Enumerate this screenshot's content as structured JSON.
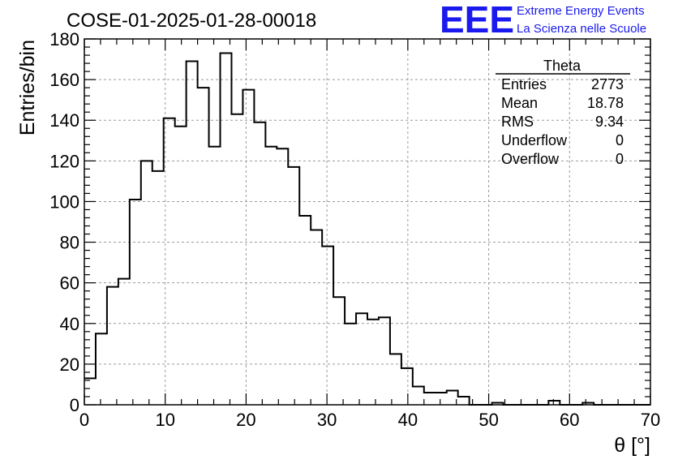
{
  "chart_data": {
    "type": "histogram",
    "title": "COSE-01-2025-01-28-00018",
    "xlabel": "θ [°]",
    "ylabel": "Entries/bin",
    "xlim": [
      0,
      70
    ],
    "ylim": [
      0,
      180
    ],
    "xticks": [
      0,
      10,
      20,
      30,
      40,
      50,
      60,
      70
    ],
    "yticks": [
      0,
      20,
      40,
      60,
      80,
      100,
      120,
      140,
      160,
      180
    ],
    "grid": true,
    "bin_width": 1.4,
    "bin_start": 0,
    "values": [
      13,
      35,
      58,
      62,
      101,
      120,
      115,
      141,
      137,
      169,
      156,
      127,
      173,
      143,
      155,
      139,
      127,
      126,
      117,
      93,
      86,
      78,
      53,
      40,
      45,
      42,
      43,
      25,
      18,
      9,
      6,
      6,
      7,
      4,
      0,
      0,
      1,
      0,
      0,
      0,
      0,
      2,
      0,
      0,
      1,
      0,
      0,
      0,
      0,
      0
    ],
    "stats_box": {
      "title": "Theta",
      "rows": [
        {
          "label": "Entries",
          "value": "2773"
        },
        {
          "label": "Mean",
          "value": "18.78"
        },
        {
          "label": "RMS",
          "value": "9.34"
        },
        {
          "label": "Underflow",
          "value": "0"
        },
        {
          "label": "Overflow",
          "value": "0"
        }
      ]
    }
  },
  "branding": {
    "logo_text": "EEE",
    "line1": "Extreme Energy Events",
    "line2": "La Scienza nelle Scuole",
    "color": "#1a1aee"
  },
  "colors": {
    "histogram_line": "#000000",
    "grid": "#9a9a9a"
  }
}
